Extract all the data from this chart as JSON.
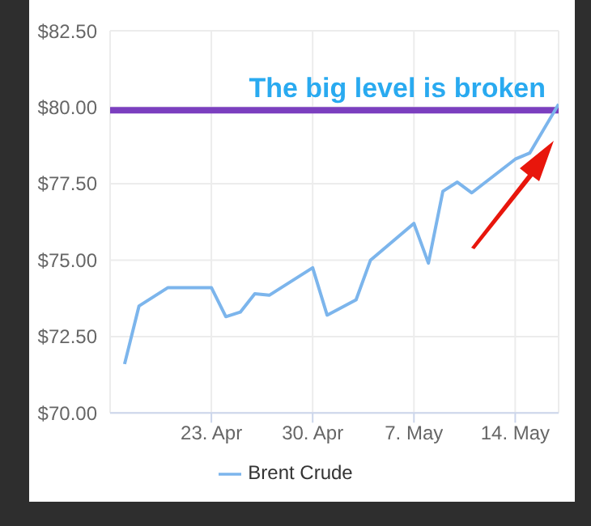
{
  "chart_data": {
    "type": "line",
    "x": [
      "--04-17",
      "--04-18",
      "--04-20",
      "--04-23",
      "--04-24",
      "--04-25",
      "--04-26",
      "--04-27",
      "--04-30",
      "--05-01",
      "--05-03",
      "--05-04",
      "--05-07",
      "--05-08",
      "--05-09",
      "--05-10",
      "--05-11",
      "--05-14",
      "--05-15",
      "--05-17"
    ],
    "series": [
      {
        "name": "Brent Crude",
        "color": "#7cb5ec",
        "values": [
          71.6,
          73.5,
          74.1,
          74.1,
          73.15,
          73.3,
          73.9,
          73.85,
          74.75,
          73.2,
          73.7,
          75.0,
          76.2,
          74.9,
          77.25,
          77.55,
          77.2,
          78.3,
          78.5,
          80.1
        ]
      }
    ],
    "xlim": [
      "--04-16",
      "--05-17"
    ],
    "xticks": [
      {
        "value": "--04-23",
        "label": "23. Apr"
      },
      {
        "value": "--04-30",
        "label": "30. Apr"
      },
      {
        "value": "--05-07",
        "label": "7. May"
      },
      {
        "value": "--05-14",
        "label": "14. May"
      }
    ],
    "ylim": [
      70,
      82.5
    ],
    "yticks": [
      {
        "value": 70,
        "label": "$70.00"
      },
      {
        "value": 72.5,
        "label": "$72.50"
      },
      {
        "value": 75,
        "label": "$75.00"
      },
      {
        "value": 77.5,
        "label": "$77.50"
      },
      {
        "value": 80,
        "label": "$80.00"
      },
      {
        "value": 82.5,
        "label": "$82.50"
      }
    ],
    "ref_lines": [
      {
        "axis": "y",
        "value": 79.9,
        "label": "The big level is broken",
        "color": "#7b3fbf"
      }
    ],
    "grid": true,
    "legend": "bottom",
    "marker": "none",
    "line_style": "solid"
  }
}
